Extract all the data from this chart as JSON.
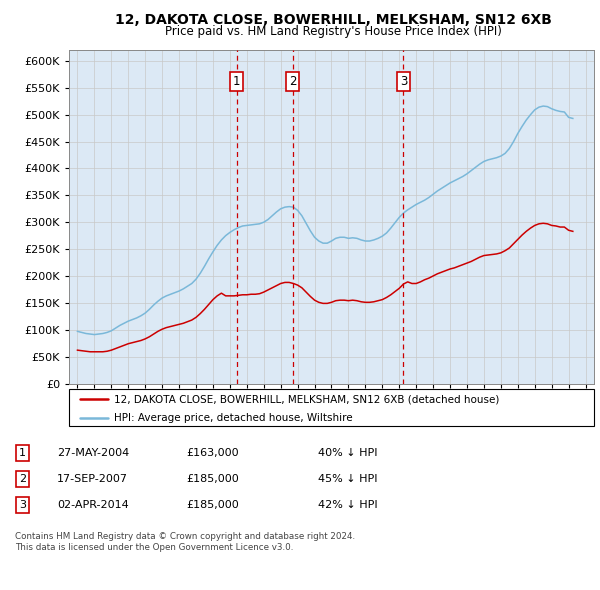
{
  "title": "12, DAKOTA CLOSE, BOWERHILL, MELKSHAM, SN12 6XB",
  "subtitle": "Price paid vs. HM Land Registry's House Price Index (HPI)",
  "legend_line1": "12, DAKOTA CLOSE, BOWERHILL, MELKSHAM, SN12 6XB (detached house)",
  "legend_line2": "HPI: Average price, detached house, Wiltshire",
  "footnote1": "Contains HM Land Registry data © Crown copyright and database right 2024.",
  "footnote2": "This data is licensed under the Open Government Licence v3.0.",
  "transactions": [
    {
      "num": 1,
      "date": "27-MAY-2004",
      "price": "£163,000",
      "hpi_pct": "40% ↓ HPI",
      "x_year": 2004.4
    },
    {
      "num": 2,
      "date": "17-SEP-2007",
      "price": "£185,000",
      "hpi_pct": "45% ↓ HPI",
      "x_year": 2007.7
    },
    {
      "num": 3,
      "date": "02-APR-2014",
      "price": "£185,000",
      "hpi_pct": "42% ↓ HPI",
      "x_year": 2014.25
    }
  ],
  "hpi_color": "#7ab8d9",
  "price_color": "#cc0000",
  "vline_color": "#cc0000",
  "bg_color": "#dce9f5",
  "grid_color": "#c8c8c8",
  "hpi_data_x": [
    1995.0,
    1995.25,
    1995.5,
    1995.75,
    1996.0,
    1996.25,
    1996.5,
    1996.75,
    1997.0,
    1997.25,
    1997.5,
    1997.75,
    1998.0,
    1998.25,
    1998.5,
    1998.75,
    1999.0,
    1999.25,
    1999.5,
    1999.75,
    2000.0,
    2000.25,
    2000.5,
    2000.75,
    2001.0,
    2001.25,
    2001.5,
    2001.75,
    2002.0,
    2002.25,
    2002.5,
    2002.75,
    2003.0,
    2003.25,
    2003.5,
    2003.75,
    2004.0,
    2004.25,
    2004.5,
    2004.75,
    2005.0,
    2005.25,
    2005.5,
    2005.75,
    2006.0,
    2006.25,
    2006.5,
    2006.75,
    2007.0,
    2007.25,
    2007.5,
    2007.75,
    2008.0,
    2008.25,
    2008.5,
    2008.75,
    2009.0,
    2009.25,
    2009.5,
    2009.75,
    2010.0,
    2010.25,
    2010.5,
    2010.75,
    2011.0,
    2011.25,
    2011.5,
    2011.75,
    2012.0,
    2012.25,
    2012.5,
    2012.75,
    2013.0,
    2013.25,
    2013.5,
    2013.75,
    2014.0,
    2014.25,
    2014.5,
    2014.75,
    2015.0,
    2015.25,
    2015.5,
    2015.75,
    2016.0,
    2016.25,
    2016.5,
    2016.75,
    2017.0,
    2017.25,
    2017.5,
    2017.75,
    2018.0,
    2018.25,
    2018.5,
    2018.75,
    2019.0,
    2019.25,
    2019.5,
    2019.75,
    2020.0,
    2020.25,
    2020.5,
    2020.75,
    2021.0,
    2021.25,
    2021.5,
    2021.75,
    2022.0,
    2022.25,
    2022.5,
    2022.75,
    2023.0,
    2023.25,
    2023.5,
    2023.75,
    2024.0,
    2024.25
  ],
  "hpi_data_y": [
    97000,
    95000,
    93000,
    92000,
    91000,
    92000,
    93000,
    95000,
    98000,
    103000,
    108000,
    112000,
    116000,
    119000,
    122000,
    126000,
    131000,
    138000,
    146000,
    153000,
    159000,
    163000,
    166000,
    169000,
    172000,
    176000,
    181000,
    186000,
    194000,
    205000,
    218000,
    232000,
    245000,
    257000,
    267000,
    275000,
    281000,
    286000,
    290000,
    293000,
    294000,
    295000,
    296000,
    297000,
    300000,
    305000,
    312000,
    319000,
    325000,
    328000,
    329000,
    328000,
    322000,
    312000,
    298000,
    284000,
    272000,
    265000,
    261000,
    261000,
    265000,
    270000,
    272000,
    272000,
    270000,
    271000,
    270000,
    267000,
    265000,
    265000,
    267000,
    270000,
    274000,
    280000,
    289000,
    299000,
    309000,
    317000,
    323000,
    328000,
    333000,
    337000,
    341000,
    346000,
    352000,
    358000,
    363000,
    368000,
    373000,
    377000,
    381000,
    385000,
    390000,
    396000,
    402000,
    408000,
    413000,
    416000,
    418000,
    420000,
    423000,
    428000,
    437000,
    450000,
    465000,
    478000,
    490000,
    500000,
    509000,
    514000,
    516000,
    515000,
    511000,
    508000,
    506000,
    505000,
    495000,
    493000
  ],
  "price_data_x": [
    1995.0,
    1995.25,
    1995.5,
    1995.75,
    1996.0,
    1996.25,
    1996.5,
    1996.75,
    1997.0,
    1997.25,
    1997.5,
    1997.75,
    1998.0,
    1998.25,
    1998.5,
    1998.75,
    1999.0,
    1999.25,
    1999.5,
    1999.75,
    2000.0,
    2000.25,
    2000.5,
    2000.75,
    2001.0,
    2001.25,
    2001.5,
    2001.75,
    2002.0,
    2002.25,
    2002.5,
    2002.75,
    2003.0,
    2003.25,
    2003.5,
    2003.75,
    2004.0,
    2004.25,
    2004.5,
    2004.75,
    2005.0,
    2005.25,
    2005.5,
    2005.75,
    2006.0,
    2006.25,
    2006.5,
    2006.75,
    2007.0,
    2007.25,
    2007.5,
    2007.75,
    2008.0,
    2008.25,
    2008.5,
    2008.75,
    2009.0,
    2009.25,
    2009.5,
    2009.75,
    2010.0,
    2010.25,
    2010.5,
    2010.75,
    2011.0,
    2011.25,
    2011.5,
    2011.75,
    2012.0,
    2012.25,
    2012.5,
    2012.75,
    2013.0,
    2013.25,
    2013.5,
    2013.75,
    2014.0,
    2014.25,
    2014.5,
    2014.75,
    2015.0,
    2015.25,
    2015.5,
    2015.75,
    2016.0,
    2016.25,
    2016.5,
    2016.75,
    2017.0,
    2017.25,
    2017.5,
    2017.75,
    2018.0,
    2018.25,
    2018.5,
    2018.75,
    2019.0,
    2019.25,
    2019.5,
    2019.75,
    2020.0,
    2020.25,
    2020.5,
    2020.75,
    2021.0,
    2021.25,
    2021.5,
    2021.75,
    2022.0,
    2022.25,
    2022.5,
    2022.75,
    2023.0,
    2023.25,
    2023.5,
    2023.75,
    2024.0,
    2024.25
  ],
  "price_data_y": [
    62000,
    61000,
    60000,
    59000,
    59000,
    59000,
    59000,
    60000,
    62000,
    65000,
    68000,
    71000,
    74000,
    76000,
    78000,
    80000,
    83000,
    87000,
    92000,
    97000,
    101000,
    104000,
    106000,
    108000,
    110000,
    112000,
    115000,
    118000,
    123000,
    130000,
    138000,
    147000,
    156000,
    163000,
    168000,
    163000,
    163000,
    163000,
    164000,
    165000,
    165000,
    166000,
    166000,
    167000,
    170000,
    174000,
    178000,
    182000,
    186000,
    188000,
    188000,
    186000,
    183000,
    178000,
    170000,
    162000,
    155000,
    151000,
    149000,
    149000,
    151000,
    154000,
    155000,
    155000,
    154000,
    155000,
    154000,
    152000,
    151000,
    151000,
    152000,
    154000,
    156000,
    160000,
    165000,
    171000,
    177000,
    185000,
    189000,
    186000,
    186000,
    189000,
    193000,
    196000,
    200000,
    204000,
    207000,
    210000,
    213000,
    215000,
    218000,
    221000,
    224000,
    227000,
    231000,
    235000,
    238000,
    239000,
    240000,
    241000,
    243000,
    247000,
    252000,
    260000,
    268000,
    276000,
    283000,
    289000,
    294000,
    297000,
    298000,
    297000,
    294000,
    293000,
    291000,
    291000,
    285000,
    283000
  ],
  "xlim": [
    1994.5,
    2025.5
  ],
  "ylim": [
    0,
    620000
  ],
  "yticks": [
    0,
    50000,
    100000,
    150000,
    200000,
    250000,
    300000,
    350000,
    400000,
    450000,
    500000,
    550000,
    600000
  ],
  "xticks": [
    1995,
    1996,
    1997,
    1998,
    1999,
    2000,
    2001,
    2002,
    2003,
    2004,
    2005,
    2006,
    2007,
    2008,
    2009,
    2010,
    2011,
    2012,
    2013,
    2014,
    2015,
    2016,
    2017,
    2018,
    2019,
    2020,
    2021,
    2022,
    2023,
    2024,
    2025
  ]
}
